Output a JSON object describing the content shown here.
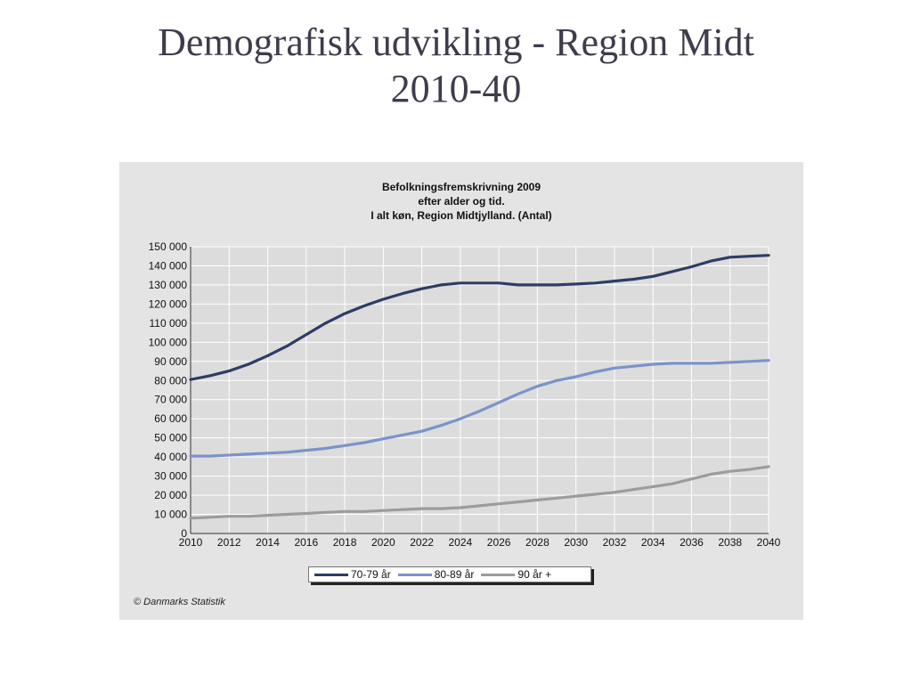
{
  "slide": {
    "title_line1": "Demografisk udvikling - Region Midt",
    "title_line2": "2010-40"
  },
  "source": "© Danmarks Statistik",
  "colors": {
    "series1": "#2e3d66",
    "series2": "#7b93c8",
    "series3": "#9c9c9c",
    "plot_bg": "#dcdcdc",
    "frame_bg": "#e4e4e4",
    "grid": "#ffffff"
  },
  "chart_data": {
    "type": "line",
    "title_lines": [
      "Befolkningsfremskrivning 2009",
      "efter alder og tid.",
      "I alt køn, Region Midtjylland. (Antal)"
    ],
    "xlim": [
      2010,
      2040
    ],
    "ylim": [
      0,
      150000
    ],
    "xticks": [
      2010,
      2012,
      2014,
      2016,
      2018,
      2020,
      2022,
      2024,
      2026,
      2028,
      2030,
      2032,
      2034,
      2036,
      2038,
      2040
    ],
    "yticks": [
      0,
      10000,
      20000,
      30000,
      40000,
      50000,
      60000,
      70000,
      80000,
      90000,
      100000,
      110000,
      120000,
      130000,
      140000,
      150000
    ],
    "ytick_labels": [
      "0",
      "10 000",
      "20 000",
      "30 000",
      "40 000",
      "50 000",
      "60 000",
      "70 000",
      "80 000",
      "90 000",
      "100 000",
      "110 000",
      "120 000",
      "130 000",
      "140 000",
      "150 000"
    ],
    "grid": true,
    "legend_position": "bottom",
    "x": [
      2010,
      2011,
      2012,
      2013,
      2014,
      2015,
      2016,
      2017,
      2018,
      2019,
      2020,
      2021,
      2022,
      2023,
      2024,
      2025,
      2026,
      2027,
      2028,
      2029,
      2030,
      2031,
      2032,
      2033,
      2034,
      2035,
      2036,
      2037,
      2038,
      2039,
      2040
    ],
    "series": [
      {
        "name": "70-79 år",
        "values": [
          80500,
          82500,
          85000,
          88500,
          93000,
          98000,
          104000,
          110000,
          115000,
          119000,
          122500,
          125500,
          128000,
          130000,
          131000,
          131000,
          131000,
          130000,
          130000,
          130000,
          130500,
          131000,
          132000,
          133000,
          134500,
          137000,
          139500,
          142500,
          144500,
          145000,
          145500
        ]
      },
      {
        "name": "80-89 år",
        "values": [
          40500,
          40500,
          41000,
          41500,
          42000,
          42500,
          43500,
          44500,
          46000,
          47500,
          49500,
          51500,
          53500,
          56500,
          60000,
          64000,
          68500,
          73000,
          77000,
          80000,
          82000,
          84500,
          86500,
          87500,
          88500,
          89000,
          89000,
          89000,
          89500,
          90000,
          90500
        ]
      },
      {
        "name": "90 år +",
        "values": [
          8000,
          8500,
          9000,
          9000,
          9500,
          10000,
          10500,
          11000,
          11500,
          11500,
          12000,
          12500,
          13000,
          13000,
          13500,
          14500,
          15500,
          16500,
          17500,
          18500,
          19500,
          20500,
          21500,
          23000,
          24500,
          26000,
          28500,
          31000,
          32500,
          33500,
          35000
        ]
      }
    ]
  }
}
